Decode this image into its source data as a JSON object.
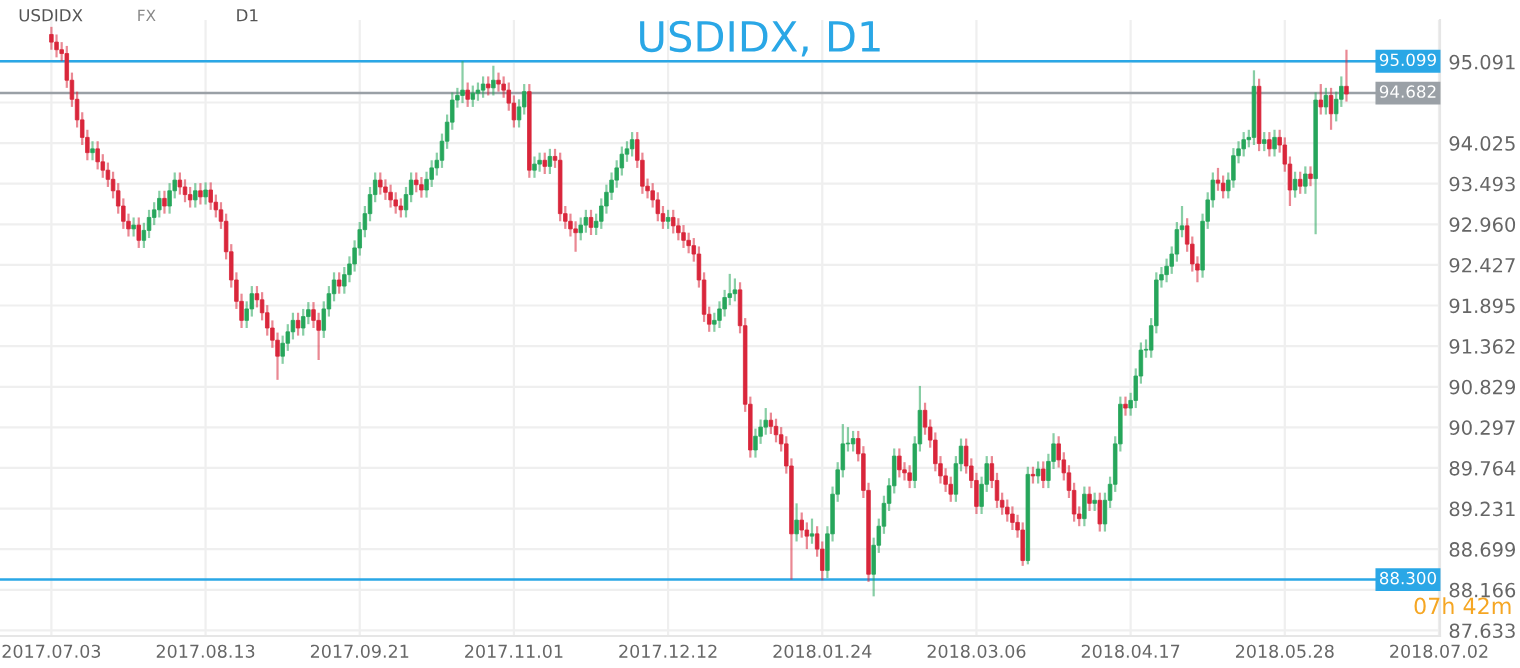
{
  "chart_data": {
    "type": "candlestick",
    "title": "USDIDX, D1",
    "categories": [
      "2017.07.03",
      null,
      null,
      null,
      null,
      null,
      null,
      null,
      null,
      null,
      null,
      null,
      null,
      null,
      null,
      null,
      null,
      null,
      null,
      null,
      null,
      null,
      null,
      null,
      null,
      null,
      null,
      null,
      null,
      null,
      "2017.08.13",
      null,
      null,
      null,
      null,
      null,
      null,
      null,
      null,
      null,
      null,
      null,
      null,
      null,
      null,
      null,
      null,
      null,
      null,
      null,
      null,
      null,
      null,
      null,
      null,
      null,
      null,
      null,
      null,
      null,
      "2017.09.21",
      null,
      null,
      null,
      null,
      null,
      null,
      null,
      null,
      null,
      null,
      null,
      null,
      null,
      null,
      null,
      null,
      null,
      null,
      null,
      null,
      null,
      null,
      null,
      null,
      null,
      null,
      null,
      null,
      null,
      "2017.11.01",
      null,
      null,
      null,
      null,
      null,
      null,
      null,
      null,
      null,
      null,
      null,
      null,
      null,
      null,
      null,
      null,
      null,
      null,
      null,
      null,
      null,
      null,
      null,
      null,
      null,
      null,
      null,
      null,
      null,
      "2017.12.12",
      null,
      null,
      null,
      null,
      null,
      null,
      null,
      null,
      null,
      null,
      null,
      null,
      null,
      null,
      null,
      null,
      null,
      null,
      null,
      null,
      null,
      null,
      null,
      null,
      null,
      null,
      null,
      null,
      null,
      "2018.01.24",
      null,
      null,
      null,
      null,
      null,
      null,
      null,
      null,
      null,
      null,
      null,
      null,
      null,
      null,
      null,
      null,
      null,
      null,
      null,
      null,
      null,
      null,
      null,
      null,
      null,
      null,
      null,
      null,
      null,
      "2018.03.06",
      null,
      null,
      null,
      null,
      null,
      null,
      null,
      null,
      null,
      null,
      null,
      null,
      null,
      null,
      null,
      null,
      null,
      null,
      null,
      null,
      null,
      null,
      null,
      null,
      null,
      null,
      null,
      null,
      null,
      "2018.04.17",
      null,
      null,
      null,
      null,
      null,
      null,
      null,
      null,
      null,
      null,
      null,
      null,
      null,
      null,
      null,
      null,
      null,
      null,
      null,
      null,
      null,
      null,
      null,
      null,
      null,
      null,
      null,
      null,
      null,
      "2018.05.28",
      null,
      null,
      null,
      null,
      null,
      null,
      null,
      null,
      null,
      null,
      null,
      null,
      null,
      null,
      null,
      null,
      null,
      null,
      null,
      null,
      null,
      null,
      null,
      null,
      null,
      null,
      null,
      null,
      null,
      "2018.07.02"
    ],
    "ohlc": [
      [
        95.45,
        95.55,
        95.25,
        95.35
      ],
      [
        95.35,
        95.45,
        95.15,
        95.25
      ],
      [
        95.25,
        95.35,
        95.1,
        95.2
      ],
      [
        95.2,
        95.3,
        94.75,
        94.85
      ],
      [
        94.85,
        94.95,
        94.5,
        94.6
      ],
      [
        94.6,
        94.7,
        94.23,
        94.33
      ],
      [
        94.33,
        94.43,
        94.0,
        94.1
      ],
      [
        94.1,
        94.2,
        93.8,
        93.9
      ],
      [
        93.9,
        94.05,
        93.8,
        93.95
      ],
      [
        93.95,
        94.05,
        93.68,
        93.78
      ],
      [
        93.78,
        93.88,
        93.57,
        93.67
      ],
      [
        93.67,
        93.77,
        93.45,
        93.55
      ],
      [
        93.55,
        93.65,
        93.3,
        93.4
      ],
      [
        93.4,
        93.5,
        93.1,
        93.2
      ],
      [
        93.2,
        93.3,
        92.9,
        93.0
      ],
      [
        93.0,
        93.1,
        92.8,
        92.9
      ],
      [
        92.9,
        93.05,
        92.8,
        92.95
      ],
      [
        92.95,
        93.05,
        92.65,
        92.75
      ],
      [
        92.75,
        92.98,
        92.65,
        92.88
      ],
      [
        92.88,
        93.15,
        92.78,
        93.05
      ],
      [
        93.05,
        93.25,
        92.95,
        93.15
      ],
      [
        93.15,
        93.4,
        93.05,
        93.3
      ],
      [
        93.3,
        93.4,
        93.1,
        93.2
      ],
      [
        93.2,
        93.5,
        93.1,
        93.4
      ],
      [
        93.4,
        93.64,
        93.3,
        93.54
      ],
      [
        93.54,
        93.64,
        93.35,
        93.45
      ],
      [
        93.45,
        93.55,
        93.25,
        93.35
      ],
      [
        93.35,
        93.45,
        93.18,
        93.28
      ],
      [
        93.28,
        93.5,
        93.18,
        93.4
      ],
      [
        93.4,
        93.5,
        93.22,
        93.32
      ],
      [
        93.32,
        93.51,
        93.22,
        93.41
      ],
      [
        93.41,
        93.51,
        93.15,
        93.25
      ],
      [
        93.25,
        93.35,
        93.05,
        93.15
      ],
      [
        93.15,
        93.25,
        92.9,
        93.0
      ],
      [
        93.0,
        93.1,
        92.5,
        92.6
      ],
      [
        92.6,
        92.7,
        92.13,
        92.23
      ],
      [
        92.23,
        92.33,
        91.85,
        91.95
      ],
      [
        91.95,
        92.05,
        91.6,
        91.7
      ],
      [
        91.7,
        91.95,
        91.6,
        91.85
      ],
      [
        91.85,
        92.15,
        91.75,
        92.05
      ],
      [
        92.05,
        92.15,
        91.87,
        91.97
      ],
      [
        91.97,
        92.07,
        91.7,
        91.8
      ],
      [
        91.8,
        91.9,
        91.5,
        91.6
      ],
      [
        91.6,
        91.7,
        91.34,
        91.44
      ],
      [
        91.44,
        91.54,
        90.92,
        91.23
      ],
      [
        91.23,
        91.5,
        91.13,
        91.4
      ],
      [
        91.4,
        91.65,
        91.3,
        91.55
      ],
      [
        91.55,
        91.8,
        91.45,
        91.7
      ],
      [
        91.7,
        91.8,
        91.5,
        91.6
      ],
      [
        91.6,
        91.85,
        91.5,
        91.75
      ],
      [
        91.75,
        91.94,
        91.65,
        91.84
      ],
      [
        91.84,
        91.94,
        91.6,
        91.7
      ],
      [
        91.7,
        91.8,
        91.18,
        91.57
      ],
      [
        91.57,
        91.95,
        91.47,
        91.85
      ],
      [
        91.85,
        92.15,
        91.75,
        92.05
      ],
      [
        92.05,
        92.33,
        91.95,
        92.23
      ],
      [
        92.23,
        92.33,
        92.05,
        92.15
      ],
      [
        92.15,
        92.4,
        92.05,
        92.3
      ],
      [
        92.3,
        92.54,
        92.2,
        92.44
      ],
      [
        92.44,
        92.75,
        92.34,
        92.65
      ],
      [
        92.65,
        92.99,
        92.55,
        92.89
      ],
      [
        92.89,
        93.2,
        92.79,
        93.1
      ],
      [
        93.1,
        93.45,
        93.0,
        93.35
      ],
      [
        93.35,
        93.64,
        93.25,
        93.54
      ],
      [
        93.54,
        93.64,
        93.35,
        93.45
      ],
      [
        93.45,
        93.55,
        93.28,
        93.38
      ],
      [
        93.38,
        93.48,
        93.18,
        93.28
      ],
      [
        93.28,
        93.38,
        93.1,
        93.2
      ],
      [
        93.2,
        93.3,
        93.05,
        93.15
      ],
      [
        93.15,
        93.45,
        93.05,
        93.35
      ],
      [
        93.35,
        93.64,
        93.25,
        93.54
      ],
      [
        93.54,
        93.64,
        93.38,
        93.48
      ],
      [
        93.48,
        93.58,
        93.31,
        93.41
      ],
      [
        93.41,
        93.65,
        93.31,
        93.55
      ],
      [
        93.55,
        93.8,
        93.45,
        93.7
      ],
      [
        93.7,
        93.9,
        93.6,
        93.8
      ],
      [
        93.8,
        94.15,
        93.7,
        94.05
      ],
      [
        94.05,
        94.4,
        93.95,
        94.3
      ],
      [
        94.3,
        94.69,
        94.2,
        94.59
      ],
      [
        94.59,
        94.75,
        94.49,
        94.65
      ],
      [
        94.65,
        95.1,
        94.55,
        94.72
      ],
      [
        94.72,
        94.82,
        94.5,
        94.6
      ],
      [
        94.6,
        94.78,
        94.5,
        94.68
      ],
      [
        94.68,
        94.82,
        94.58,
        94.72
      ],
      [
        94.72,
        94.9,
        94.62,
        94.8
      ],
      [
        94.8,
        94.9,
        94.65,
        94.75
      ],
      [
        94.75,
        95.04,
        94.65,
        94.85
      ],
      [
        94.85,
        94.95,
        94.7,
        94.8
      ],
      [
        94.8,
        94.9,
        94.62,
        94.72
      ],
      [
        94.72,
        94.82,
        94.45,
        94.55
      ],
      [
        94.55,
        94.65,
        94.23,
        94.33
      ],
      [
        94.33,
        94.6,
        94.23,
        94.5
      ],
      [
        94.5,
        94.8,
        94.4,
        94.7
      ],
      [
        94.7,
        94.8,
        93.57,
        93.67
      ],
      [
        93.67,
        93.85,
        93.57,
        93.75
      ],
      [
        93.75,
        93.9,
        93.65,
        93.8
      ],
      [
        93.8,
        93.9,
        93.62,
        93.72
      ],
      [
        93.72,
        93.95,
        93.62,
        93.85
      ],
      [
        93.85,
        93.95,
        93.7,
        93.8
      ],
      [
        93.8,
        93.9,
        93.0,
        93.1
      ],
      [
        93.1,
        93.2,
        92.9,
        93.0
      ],
      [
        93.0,
        93.1,
        92.8,
        92.9
      ],
      [
        92.9,
        93.0,
        92.6,
        92.85
      ],
      [
        92.85,
        93.05,
        92.75,
        92.95
      ],
      [
        92.95,
        93.15,
        92.85,
        93.05
      ],
      [
        93.05,
        93.15,
        92.82,
        92.92
      ],
      [
        92.92,
        93.1,
        92.82,
        93.0
      ],
      [
        93.0,
        93.3,
        92.9,
        93.2
      ],
      [
        93.2,
        93.48,
        93.1,
        93.38
      ],
      [
        93.38,
        93.64,
        93.28,
        93.54
      ],
      [
        93.54,
        93.8,
        93.44,
        93.7
      ],
      [
        93.7,
        93.98,
        93.6,
        93.88
      ],
      [
        93.88,
        94.05,
        93.78,
        93.95
      ],
      [
        93.95,
        94.17,
        93.85,
        94.07
      ],
      [
        94.07,
        94.17,
        93.7,
        93.8
      ],
      [
        93.8,
        93.9,
        93.36,
        93.46
      ],
      [
        93.46,
        93.56,
        93.3,
        93.4
      ],
      [
        93.4,
        93.5,
        93.18,
        93.28
      ],
      [
        93.28,
        93.38,
        93.0,
        93.1
      ],
      [
        93.1,
        93.2,
        92.9,
        93.0
      ],
      [
        93.0,
        93.15,
        92.9,
        93.05
      ],
      [
        93.05,
        93.15,
        92.84,
        92.94
      ],
      [
        92.94,
        93.04,
        92.75,
        92.85
      ],
      [
        92.85,
        92.95,
        92.65,
        92.75
      ],
      [
        92.75,
        92.85,
        92.58,
        92.68
      ],
      [
        92.68,
        92.78,
        92.47,
        92.57
      ],
      [
        92.57,
        92.67,
        92.13,
        92.23
      ],
      [
        92.23,
        92.33,
        91.68,
        91.78
      ],
      [
        91.78,
        91.88,
        91.55,
        91.65
      ],
      [
        91.65,
        91.8,
        91.55,
        91.7
      ],
      [
        91.7,
        91.95,
        91.6,
        91.85
      ],
      [
        91.85,
        92.1,
        91.75,
        92.0
      ],
      [
        92.0,
        92.31,
        91.9,
        92.05
      ],
      [
        92.05,
        92.25,
        91.95,
        92.1
      ],
      [
        92.1,
        92.2,
        91.53,
        91.63
      ],
      [
        91.63,
        91.73,
        90.5,
        90.6
      ],
      [
        90.6,
        90.7,
        89.9,
        90.0
      ],
      [
        90.0,
        90.28,
        89.9,
        90.18
      ],
      [
        90.18,
        90.4,
        90.08,
        90.3
      ],
      [
        90.3,
        90.55,
        90.2,
        90.39
      ],
      [
        90.39,
        90.49,
        90.21,
        90.31
      ],
      [
        90.31,
        90.41,
        90.1,
        90.2
      ],
      [
        90.2,
        90.3,
        89.98,
        90.08
      ],
      [
        90.08,
        90.18,
        89.69,
        89.79
      ],
      [
        89.79,
        89.89,
        88.3,
        88.9
      ],
      [
        88.9,
        89.3,
        88.8,
        89.08
      ],
      [
        89.08,
        89.18,
        88.85,
        88.95
      ],
      [
        88.95,
        89.05,
        88.7,
        88.87
      ],
      [
        88.87,
        89.1,
        88.77,
        88.9
      ],
      [
        88.9,
        89.0,
        88.6,
        88.7
      ],
      [
        88.7,
        88.8,
        88.29,
        88.42
      ],
      [
        88.42,
        89.0,
        88.32,
        88.9
      ],
      [
        88.9,
        89.52,
        88.8,
        89.42
      ],
      [
        89.42,
        89.84,
        89.32,
        89.74
      ],
      [
        89.74,
        90.34,
        89.64,
        90.08
      ],
      [
        90.08,
        90.3,
        89.98,
        90.08
      ],
      [
        90.08,
        90.25,
        89.98,
        90.15
      ],
      [
        90.15,
        90.25,
        89.85,
        89.95
      ],
      [
        89.95,
        90.05,
        89.37,
        89.47
      ],
      [
        89.47,
        89.57,
        88.27,
        88.37
      ],
      [
        88.37,
        88.85,
        88.08,
        88.75
      ],
      [
        88.75,
        89.1,
        88.65,
        89.0
      ],
      [
        89.0,
        89.4,
        88.9,
        89.3
      ],
      [
        89.3,
        89.63,
        89.2,
        89.53
      ],
      [
        89.53,
        90.02,
        89.43,
        89.92
      ],
      [
        89.92,
        90.02,
        89.64,
        89.74
      ],
      [
        89.74,
        89.84,
        89.6,
        89.7
      ],
      [
        89.7,
        89.8,
        89.5,
        89.6
      ],
      [
        89.6,
        90.18,
        89.5,
        90.08
      ],
      [
        90.08,
        90.84,
        89.98,
        90.52
      ],
      [
        90.52,
        90.62,
        90.2,
        90.3
      ],
      [
        90.3,
        90.4,
        90.03,
        90.13
      ],
      [
        90.13,
        90.23,
        89.72,
        89.82
      ],
      [
        89.82,
        89.92,
        89.56,
        89.66
      ],
      [
        89.66,
        89.76,
        89.45,
        89.55
      ],
      [
        89.55,
        89.65,
        89.32,
        89.42
      ],
      [
        89.42,
        89.92,
        89.32,
        89.82
      ],
      [
        89.82,
        90.15,
        89.72,
        90.05
      ],
      [
        90.05,
        90.15,
        89.69,
        89.79
      ],
      [
        89.79,
        89.89,
        89.5,
        89.6
      ],
      [
        89.6,
        89.7,
        89.16,
        89.26
      ],
      [
        89.26,
        89.65,
        89.16,
        89.55
      ],
      [
        89.55,
        89.92,
        89.45,
        89.82
      ],
      [
        89.82,
        89.92,
        89.5,
        89.6
      ],
      [
        89.6,
        89.7,
        89.24,
        89.34
      ],
      [
        89.34,
        89.44,
        89.15,
        89.25
      ],
      [
        89.25,
        89.35,
        89.06,
        89.16
      ],
      [
        89.16,
        89.26,
        88.95,
        89.05
      ],
      [
        89.05,
        89.15,
        88.85,
        88.95
      ],
      [
        88.95,
        89.05,
        88.48,
        88.55
      ],
      [
        88.55,
        89.78,
        88.5,
        89.68
      ],
      [
        89.68,
        89.78,
        89.56,
        89.66
      ],
      [
        89.66,
        89.85,
        89.56,
        89.75
      ],
      [
        89.75,
        89.85,
        89.5,
        89.6
      ],
      [
        89.6,
        89.95,
        89.5,
        89.85
      ],
      [
        89.85,
        90.22,
        89.75,
        90.08
      ],
      [
        90.08,
        90.18,
        89.77,
        89.87
      ],
      [
        89.87,
        89.97,
        89.6,
        89.7
      ],
      [
        89.7,
        89.8,
        89.37,
        89.47
      ],
      [
        89.47,
        89.57,
        89.06,
        89.16
      ],
      [
        89.16,
        89.26,
        89.0,
        89.1
      ],
      [
        89.1,
        89.52,
        89.0,
        89.42
      ],
      [
        89.42,
        89.52,
        89.2,
        89.3
      ],
      [
        89.3,
        89.44,
        89.2,
        89.34
      ],
      [
        89.34,
        89.44,
        88.93,
        89.03
      ],
      [
        89.03,
        89.44,
        88.93,
        89.34
      ],
      [
        89.34,
        89.65,
        89.24,
        89.55
      ],
      [
        89.55,
        90.18,
        89.45,
        90.08
      ],
      [
        90.08,
        90.7,
        89.98,
        90.6
      ],
      [
        90.6,
        90.7,
        90.45,
        90.55
      ],
      [
        90.55,
        90.75,
        90.45,
        90.65
      ],
      [
        90.65,
        91.07,
        90.55,
        90.97
      ],
      [
        90.97,
        91.41,
        90.87,
        91.31
      ],
      [
        91.31,
        91.45,
        91.21,
        91.31
      ],
      [
        91.31,
        91.73,
        91.21,
        91.63
      ],
      [
        91.63,
        92.33,
        91.53,
        92.23
      ],
      [
        92.23,
        92.4,
        92.13,
        92.3
      ],
      [
        92.3,
        92.51,
        92.2,
        92.41
      ],
      [
        92.41,
        92.67,
        92.31,
        92.57
      ],
      [
        92.57,
        92.99,
        92.47,
        92.89
      ],
      [
        92.89,
        93.2,
        92.79,
        92.94
      ],
      [
        92.94,
        93.04,
        92.6,
        92.7
      ],
      [
        92.7,
        92.8,
        92.34,
        92.44
      ],
      [
        92.44,
        92.54,
        92.2,
        92.36
      ],
      [
        92.36,
        93.1,
        92.26,
        93.0
      ],
      [
        93.0,
        93.38,
        92.9,
        93.28
      ],
      [
        93.28,
        93.64,
        93.18,
        93.54
      ],
      [
        93.54,
        93.7,
        93.4,
        93.5
      ],
      [
        93.5,
        93.6,
        93.3,
        93.4
      ],
      [
        93.4,
        93.64,
        93.3,
        93.54
      ],
      [
        93.54,
        93.96,
        93.44,
        93.86
      ],
      [
        93.86,
        94.05,
        93.76,
        93.95
      ],
      [
        93.95,
        94.17,
        93.85,
        94.07
      ],
      [
        94.07,
        94.2,
        93.97,
        94.1
      ],
      [
        94.1,
        94.98,
        94.0,
        94.77
      ],
      [
        94.77,
        94.87,
        93.92,
        94.02
      ],
      [
        94.02,
        94.17,
        93.92,
        94.07
      ],
      [
        94.07,
        94.17,
        93.85,
        93.95
      ],
      [
        93.95,
        94.2,
        93.85,
        94.1
      ],
      [
        94.1,
        94.2,
        93.9,
        94.0
      ],
      [
        94.0,
        94.1,
        93.65,
        93.75
      ],
      [
        93.75,
        93.85,
        93.2,
        93.41
      ],
      [
        93.41,
        93.65,
        93.31,
        93.55
      ],
      [
        93.55,
        93.65,
        93.36,
        93.46
      ],
      [
        93.46,
        93.72,
        93.36,
        93.62
      ],
      [
        93.62,
        93.72,
        93.46,
        93.56
      ],
      [
        93.56,
        94.69,
        92.83,
        94.59
      ],
      [
        94.59,
        94.8,
        94.4,
        94.5
      ],
      [
        94.5,
        94.75,
        94.4,
        94.65
      ],
      [
        94.65,
        94.75,
        94.2,
        94.41
      ],
      [
        94.41,
        94.7,
        94.31,
        94.6
      ],
      [
        94.6,
        94.9,
        94.5,
        94.77
      ],
      [
        94.77,
        95.25,
        94.57,
        94.67
      ],
      null,
      null,
      null,
      null,
      null,
      null,
      null,
      null,
      null,
      null,
      null,
      null,
      null,
      null,
      null,
      null,
      null,
      null
    ],
    "ylim": [
      87.56,
      95.64
    ],
    "yticks": [
      95.091,
      {
        "value": 94.558,
        "label": null
      },
      94.025,
      93.493,
      {
        "value": 92.96,
        "label": "92.960"
      },
      92.427,
      91.895,
      91.362,
      90.829,
      90.297,
      89.764,
      89.231,
      88.699,
      88.166,
      87.633
    ],
    "grid": true,
    "ref_lines": [
      {
        "axis": "y",
        "value": 95.099,
        "label": "95.099",
        "color": "#2aa7e6"
      },
      {
        "axis": "y",
        "value": 94.682,
        "label": "94.682",
        "color": "#9aa0a6"
      },
      {
        "axis": "y",
        "value": 88.3,
        "label": "88.300",
        "color": "#2aa7e6"
      }
    ],
    "annotations": [
      "USDIDX",
      "FX",
      "D1",
      "07h 42m"
    ]
  }
}
